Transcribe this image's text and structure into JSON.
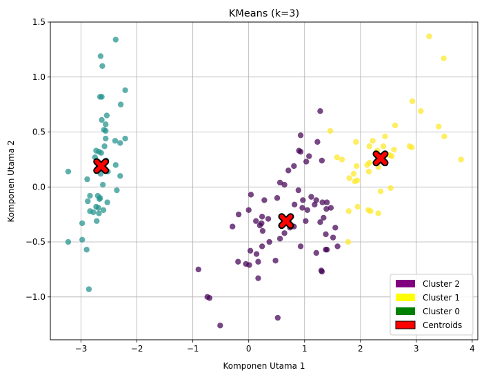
{
  "chart_data": {
    "type": "scatter",
    "title": "KMeans (k=3)",
    "xlabel": "Komponen Utama 1",
    "ylabel": "Komponen Utama 2",
    "xlim": [
      -3.55,
      4.1
    ],
    "ylim": [
      -1.39,
      1.5
    ],
    "xticks": [
      -3,
      -2,
      -1,
      0,
      1,
      2,
      3,
      4
    ],
    "yticks": [
      -1.0,
      -0.5,
      0.0,
      0.5,
      1.0,
      1.5
    ],
    "xtick_labels": [
      "−3",
      "−2",
      "−1",
      "0",
      "1",
      "2",
      "3",
      "4"
    ],
    "ytick_labels": [
      "−1.0",
      "−0.5",
      "0.0",
      "0.5",
      "1.0",
      "1.5"
    ],
    "grid": true,
    "legend_position": "lower-right",
    "legend": [
      {
        "label": "Cluster 2",
        "color": "#800080"
      },
      {
        "label": "Cluster 1",
        "color": "#ffff00"
      },
      {
        "label": "Cluster 0",
        "color": "#008000"
      },
      {
        "label": "Centroids",
        "color": "#ff0000"
      }
    ],
    "series": [
      {
        "name": "Cluster 0",
        "color": "#21918c",
        "points": [
          [
            -2.38,
            1.34
          ],
          [
            -2.65,
            1.19
          ],
          [
            -2.62,
            1.1
          ],
          [
            -2.21,
            0.88
          ],
          [
            -2.66,
            0.82
          ],
          [
            -2.63,
            0.82
          ],
          [
            -2.29,
            0.75
          ],
          [
            -2.54,
            0.65
          ],
          [
            -2.63,
            0.61
          ],
          [
            -2.56,
            0.57
          ],
          [
            -2.59,
            0.52
          ],
          [
            -2.56,
            0.51
          ],
          [
            -2.21,
            0.44
          ],
          [
            -2.56,
            0.44
          ],
          [
            -2.39,
            0.42
          ],
          [
            -2.3,
            0.4
          ],
          [
            -2.58,
            0.37
          ],
          [
            -2.73,
            0.33
          ],
          [
            -2.68,
            0.32
          ],
          [
            -2.64,
            0.31
          ],
          [
            -2.75,
            0.27
          ],
          [
            -2.55,
            0.24
          ],
          [
            -2.38,
            0.2
          ],
          [
            -2.7,
            0.17
          ],
          [
            -2.52,
            0.14
          ],
          [
            -3.23,
            0.14
          ],
          [
            -2.65,
            0.12
          ],
          [
            -2.3,
            0.1
          ],
          [
            -2.89,
            0.07
          ],
          [
            -2.61,
            0.02
          ],
          [
            -2.36,
            -0.03
          ],
          [
            -2.7,
            -0.08
          ],
          [
            -2.84,
            -0.08
          ],
          [
            -2.67,
            -0.11
          ],
          [
            -2.66,
            -0.1
          ],
          [
            -2.88,
            -0.13
          ],
          [
            -2.53,
            -0.14
          ],
          [
            -2.69,
            -0.19
          ],
          [
            -2.73,
            -0.18
          ],
          [
            -2.6,
            -0.21
          ],
          [
            -2.84,
            -0.22
          ],
          [
            -2.78,
            -0.23
          ],
          [
            -2.68,
            -0.24
          ],
          [
            -2.72,
            -0.31
          ],
          [
            -2.98,
            -0.33
          ],
          [
            -2.98,
            -0.48
          ],
          [
            -3.23,
            -0.5
          ],
          [
            -2.9,
            -0.57
          ],
          [
            -2.86,
            -0.93
          ]
        ]
      },
      {
        "name": "Cluster 1",
        "color": "#fde725",
        "points": [
          [
            3.23,
            1.37
          ],
          [
            3.49,
            1.17
          ],
          [
            2.93,
            0.78
          ],
          [
            3.08,
            0.69
          ],
          [
            2.62,
            0.56
          ],
          [
            3.4,
            0.55
          ],
          [
            1.46,
            0.51
          ],
          [
            2.44,
            0.46
          ],
          [
            3.5,
            0.46
          ],
          [
            2.22,
            0.42
          ],
          [
            1.92,
            0.41
          ],
          [
            2.41,
            0.37
          ],
          [
            2.16,
            0.37
          ],
          [
            2.88,
            0.37
          ],
          [
            2.92,
            0.36
          ],
          [
            2.6,
            0.34
          ],
          [
            2.3,
            0.33
          ],
          [
            2.52,
            0.29
          ],
          [
            2.56,
            0.28
          ],
          [
            1.58,
            0.27
          ],
          [
            1.67,
            0.25
          ],
          [
            2.33,
            0.25
          ],
          [
            3.8,
            0.25
          ],
          [
            2.16,
            0.22
          ],
          [
            2.12,
            0.2
          ],
          [
            1.93,
            0.19
          ],
          [
            2.32,
            0.18
          ],
          [
            1.88,
            0.12
          ],
          [
            2.15,
            0.14
          ],
          [
            1.94,
            0.06
          ],
          [
            1.8,
            0.08
          ],
          [
            1.9,
            0.05
          ],
          [
            2.54,
            -0.01
          ],
          [
            2.36,
            -0.04
          ],
          [
            1.95,
            -0.18
          ],
          [
            2.14,
            -0.21
          ],
          [
            1.79,
            -0.22
          ],
          [
            2.18,
            -0.22
          ],
          [
            2.32,
            -0.24
          ],
          [
            1.78,
            -0.5
          ]
        ]
      },
      {
        "name": "Cluster 2",
        "color": "#440154",
        "points": [
          [
            1.28,
            0.69
          ],
          [
            1.23,
            0.41
          ],
          [
            0.93,
            0.47
          ],
          [
            0.9,
            0.33
          ],
          [
            0.93,
            0.32
          ],
          [
            1.08,
            0.28
          ],
          [
            1.31,
            0.24
          ],
          [
            1.03,
            0.23
          ],
          [
            0.81,
            0.19
          ],
          [
            0.71,
            0.15
          ],
          [
            0.56,
            0.04
          ],
          [
            0.64,
            0.02
          ],
          [
            0.89,
            -0.03
          ],
          [
            0.04,
            -0.07
          ],
          [
            1.12,
            -0.09
          ],
          [
            0.51,
            -0.1
          ],
          [
            0.97,
            -0.12
          ],
          [
            1.21,
            -0.12
          ],
          [
            0.28,
            -0.12
          ],
          [
            1.32,
            -0.14
          ],
          [
            1.4,
            -0.14
          ],
          [
            1.18,
            -0.16
          ],
          [
            0.82,
            -0.16
          ],
          [
            1.39,
            -0.2
          ],
          [
            0.0,
            -0.21
          ],
          [
            0.96,
            -0.19
          ],
          [
            1.47,
            -0.19
          ],
          [
            1.05,
            -0.21
          ],
          [
            -0.18,
            -0.25
          ],
          [
            0.24,
            -0.27
          ],
          [
            1.34,
            -0.28
          ],
          [
            0.35,
            -0.29
          ],
          [
            0.13,
            -0.31
          ],
          [
            1.02,
            -0.31
          ],
          [
            1.28,
            -0.32
          ],
          [
            0.23,
            -0.33
          ],
          [
            0.2,
            -0.35
          ],
          [
            0.81,
            -0.36
          ],
          [
            0.74,
            -0.37
          ],
          [
            1.55,
            -0.37
          ],
          [
            -0.29,
            -0.36
          ],
          [
            0.25,
            -0.4
          ],
          [
            0.64,
            -0.42
          ],
          [
            1.38,
            -0.43
          ],
          [
            0.37,
            -0.5
          ],
          [
            1.51,
            -0.46
          ],
          [
            0.56,
            -0.47
          ],
          [
            0.93,
            -0.54
          ],
          [
            0.24,
            -0.54
          ],
          [
            1.59,
            -0.54
          ],
          [
            1.38,
            -0.57
          ],
          [
            1.4,
            -0.57
          ],
          [
            0.03,
            -0.58
          ],
          [
            0.14,
            -0.61
          ],
          [
            1.21,
            -0.6
          ],
          [
            -0.19,
            -0.68
          ],
          [
            0.17,
            -0.68
          ],
          [
            0.48,
            -0.67
          ],
          [
            -0.05,
            -0.7
          ],
          [
            0.01,
            -0.71
          ],
          [
            1.3,
            -0.76
          ],
          [
            1.31,
            -0.77
          ],
          [
            -0.9,
            -0.75
          ],
          [
            -0.74,
            -1.0
          ],
          [
            0.17,
            -0.83
          ],
          [
            -0.7,
            -1.01
          ],
          [
            0.52,
            -1.19
          ],
          [
            -0.51,
            -1.26
          ]
        ]
      }
    ],
    "centroids": {
      "name": "Centroids",
      "color": "#ff0000",
      "points": [
        [
          -2.64,
          0.19
        ],
        [
          0.67,
          -0.31
        ],
        [
          2.36,
          0.26
        ]
      ]
    }
  }
}
